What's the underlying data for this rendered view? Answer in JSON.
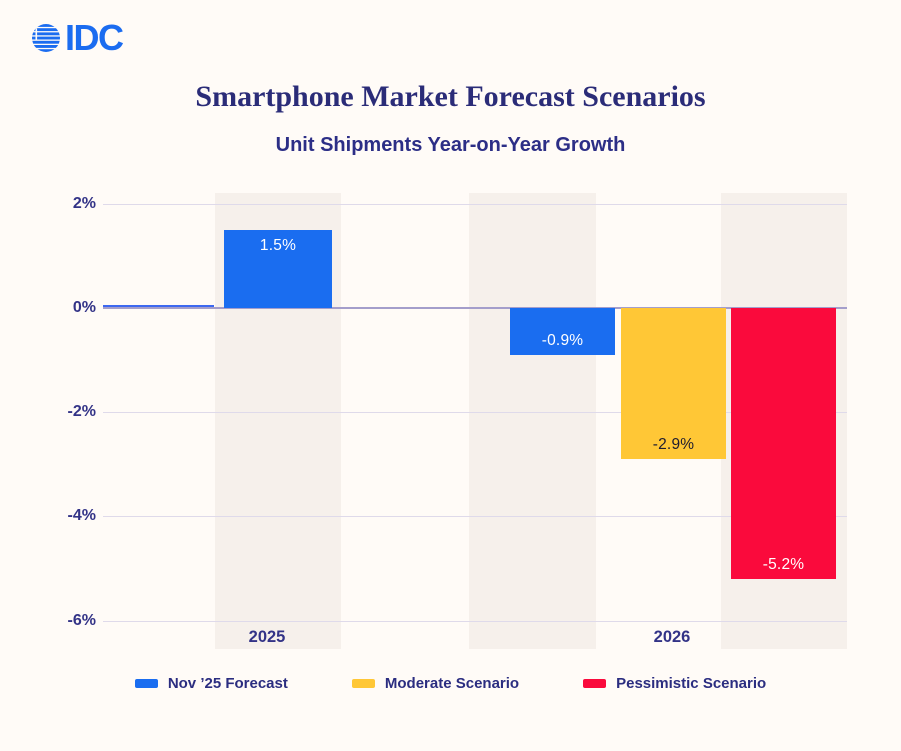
{
  "logo": {
    "text": "IDC",
    "icon": "striped-globe-icon",
    "color": "#1B6CF0"
  },
  "header": {
    "title": "Smartphone Market Forecast Scenarios",
    "subtitle": "Unit Shipments Year-on-Year Growth"
  },
  "colors": {
    "background": "#FFFBF7",
    "column_band": "#F6F0EB",
    "gridline": "#DFDAEA",
    "zero_line": "#A49ECB",
    "zero_line_accent": "#3D68F0",
    "navy_text": "#2C2E86",
    "blue": "#1A6DF0",
    "yellow": "#FFC736",
    "red": "#FA0A3C"
  },
  "chart_data": {
    "type": "bar",
    "title": "Smartphone Market Forecast Scenarios",
    "subtitle": "Unit Shipments Year-on-Year Growth",
    "categories": [
      "2025",
      "2026"
    ],
    "series": [
      {
        "name": "Nov ’25 Forecast",
        "color": "#1A6DF0",
        "values": [
          1.5,
          -0.9
        ]
      },
      {
        "name": "Moderate Scenario",
        "color": "#FFC736",
        "values": [
          null,
          -2.9
        ]
      },
      {
        "name": "Pessimistic Scenario",
        "color": "#FA0A3C",
        "values": [
          null,
          -5.2
        ]
      }
    ],
    "bars": [
      {
        "category": "2025",
        "series": "Nov ’25 Forecast",
        "value": 1.5,
        "label": "1.5%",
        "color": "#1A6DF0",
        "label_color": "#FFFFFF"
      },
      {
        "category": "2026",
        "series": "Nov ’25 Forecast",
        "value": -0.9,
        "label": "-0.9%",
        "color": "#1A6DF0",
        "label_color": "#FFFFFF"
      },
      {
        "category": "2026",
        "series": "Moderate Scenario",
        "value": -2.9,
        "label": "-2.9%",
        "color": "#FFC736",
        "label_color": "#1E1C30"
      },
      {
        "category": "2026",
        "series": "Pessimistic Scenario",
        "value": -5.2,
        "label": "-5.2%",
        "color": "#FA0A3C",
        "label_color": "#FFFFFF"
      }
    ],
    "y_ticks": [
      {
        "label": "2%",
        "value": 2
      },
      {
        "label": "0%",
        "value": 0
      },
      {
        "label": "-2%",
        "value": -2
      },
      {
        "label": "-4%",
        "value": -4
      },
      {
        "label": "-6%",
        "value": -6
      }
    ],
    "x_tick_labels": [
      "2025",
      "2026"
    ],
    "ylim": [
      -6.7,
      2.2
    ],
    "grid": true,
    "legend_position": "bottom"
  },
  "legend": {
    "items": [
      {
        "label": "Nov ’25 Forecast",
        "color": "#1A6DF0"
      },
      {
        "label": "Moderate Scenario",
        "color": "#FFC736"
      },
      {
        "label": "Pessimistic Scenario",
        "color": "#FA0A3C"
      }
    ]
  }
}
